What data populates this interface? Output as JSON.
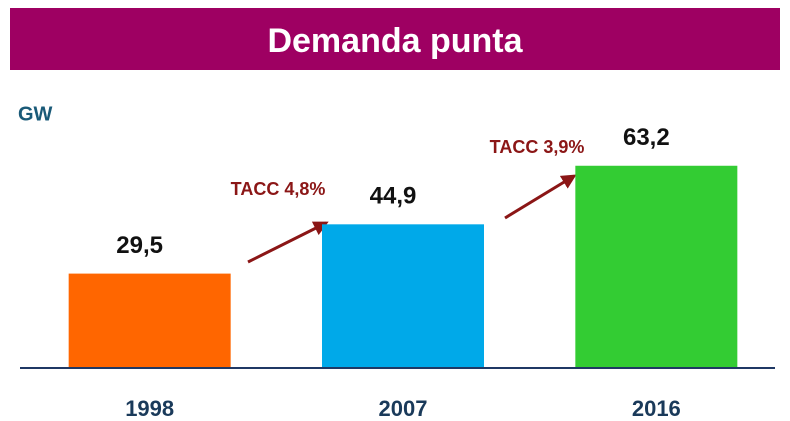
{
  "chart_data": {
    "type": "bar",
    "title": "Demanda punta",
    "y_label": "GW",
    "categories": [
      "1998",
      "2007",
      "2016"
    ],
    "values": [
      29.5,
      44.9,
      63.2
    ],
    "value_labels": [
      "29,5",
      "44,9",
      "63,2"
    ],
    "colors": [
      "#ff6600",
      "#00a9e9",
      "#33cc33"
    ],
    "ylim": [
      0,
      70
    ],
    "annotations": [
      "TACC 4,8%",
      "TACC 3,9%"
    ]
  }
}
